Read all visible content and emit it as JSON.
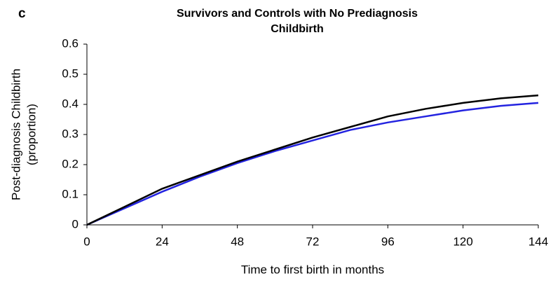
{
  "chart_data": {
    "type": "line",
    "panel_label": "c",
    "title": [
      "Survivors and Controls with No Prediagnosis",
      "Childbirth"
    ],
    "ylabel": [
      "Post-diagnosis Childbirth",
      "(proportion)"
    ],
    "xlabel": "Time to first birth in months",
    "x": [
      0,
      12,
      24,
      36,
      48,
      60,
      72,
      84,
      96,
      108,
      120,
      132,
      144
    ],
    "series": [
      {
        "color": "#000000",
        "values": [
          0,
          0.06,
          0.12,
          0.165,
          0.21,
          0.25,
          0.29,
          0.325,
          0.36,
          0.385,
          0.405,
          0.42,
          0.43
        ]
      },
      {
        "color": "#2323e0",
        "values": [
          0,
          0.055,
          0.11,
          0.16,
          0.205,
          0.245,
          0.28,
          0.315,
          0.34,
          0.36,
          0.38,
          0.395,
          0.405
        ]
      }
    ],
    "xlim": [
      0,
      144
    ],
    "xticks": [
      0,
      24,
      48,
      72,
      96,
      120,
      144
    ],
    "ylim": [
      0,
      0.6
    ],
    "yticks": [
      0,
      0.1,
      0.2,
      0.3,
      0.4,
      0.5,
      0.6
    ],
    "grid": false
  }
}
